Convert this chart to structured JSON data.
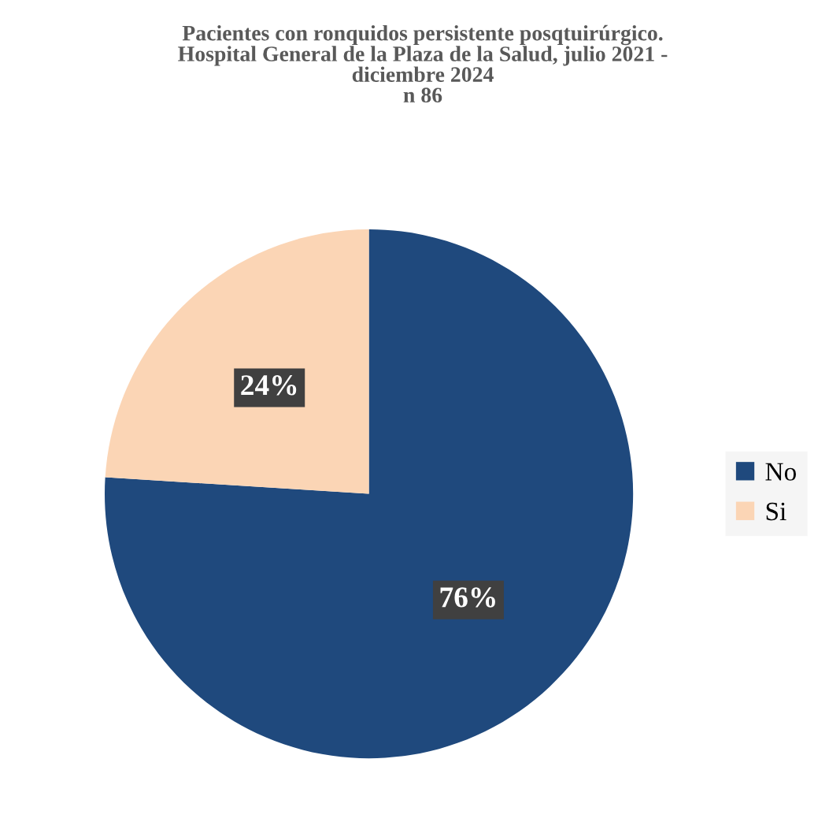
{
  "chart_data": {
    "type": "pie",
    "title": "Pacientes con ronquidos persistente posqtuirúrgico.\nHospital General de la Plaza de la Salud, julio 2021 -\ndiciembre 2024\nn 86",
    "categories": [
      "No",
      "Si"
    ],
    "values": [
      76,
      24
    ],
    "colors": [
      "#1f497d",
      "#fbd5b5"
    ],
    "value_labels": [
      "76%",
      "24%"
    ],
    "legend": "right"
  }
}
